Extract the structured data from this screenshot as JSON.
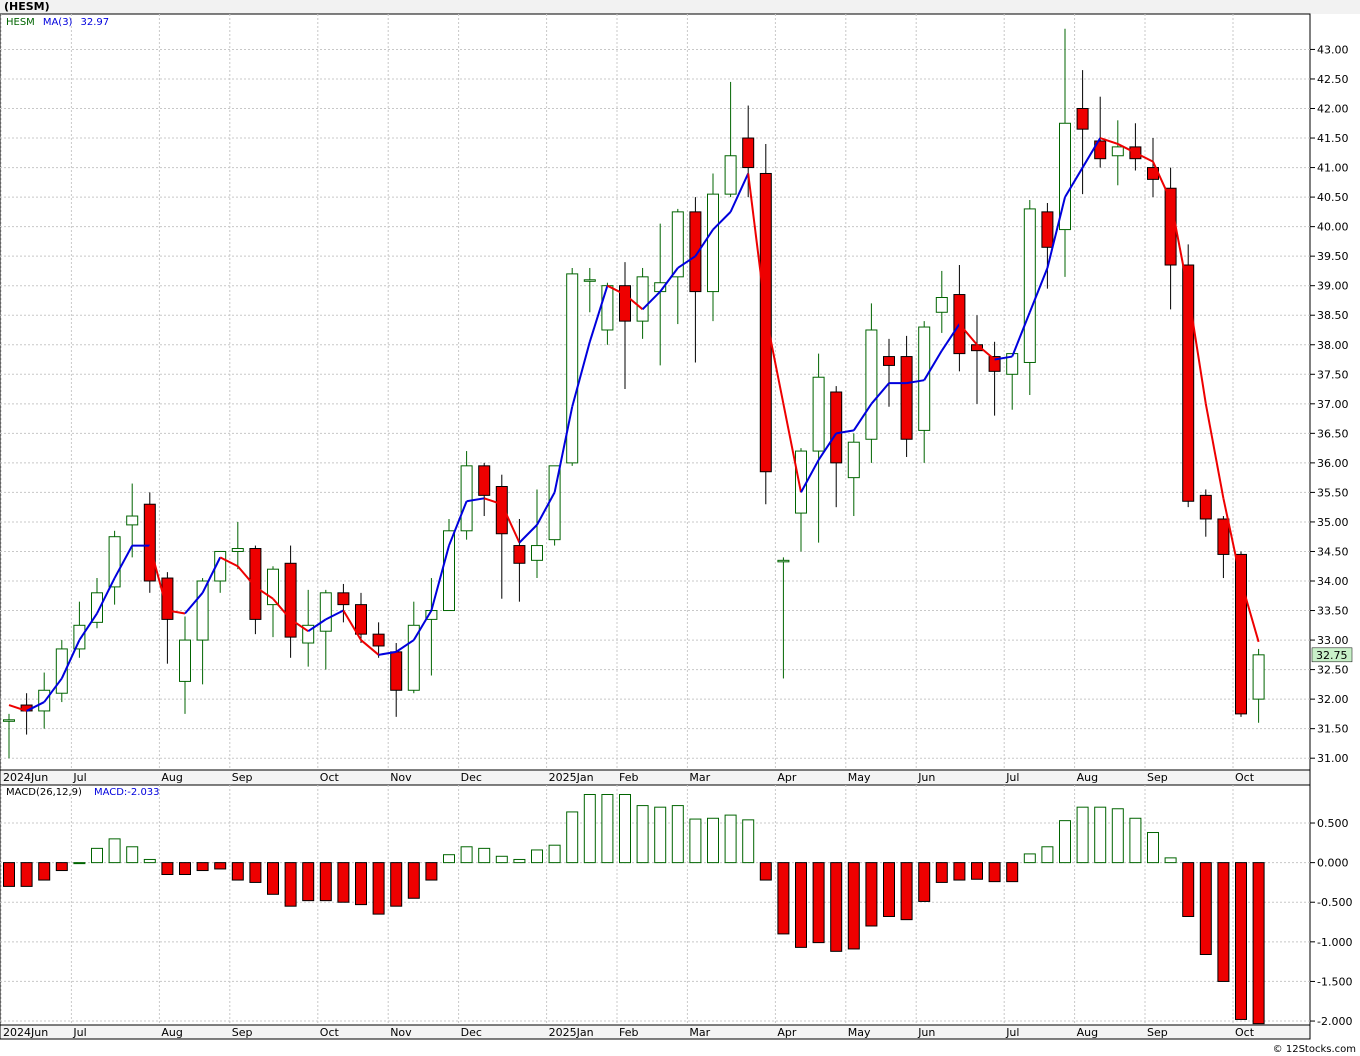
{
  "title": "(HESM)",
  "credit": "© 12Stocks.com",
  "colors": {
    "up": "#006400",
    "down": "#ee0000",
    "ma_up": "#0000dd",
    "ma_down": "#ee0000",
    "grid": "#c8c8c8",
    "price_label_bg": "#c8f0c8"
  },
  "chart_data": [
    {
      "type": "candlestick",
      "legend": {
        "symbol": "HESM",
        "ma_label": "MA(3)",
        "ma_value": "32.97"
      },
      "last_price_label": "32.75",
      "ylim": [
        30.8,
        43.6
      ],
      "yticks": [
        "31.00",
        "31.50",
        "32.00",
        "32.50",
        "33.00",
        "33.50",
        "34.00",
        "34.50",
        "35.00",
        "35.50",
        "36.00",
        "36.50",
        "37.00",
        "37.50",
        "38.00",
        "38.50",
        "39.00",
        "39.50",
        "40.00",
        "40.50",
        "41.00",
        "41.50",
        "42.00",
        "42.50",
        "43.00"
      ],
      "xticks": [
        {
          "label": "2024Jun",
          "i": 0
        },
        {
          "label": "Jul",
          "i": 4
        },
        {
          "label": "Aug",
          "i": 9
        },
        {
          "label": "Sep",
          "i": 13
        },
        {
          "label": "Oct",
          "i": 18
        },
        {
          "label": "Nov",
          "i": 22
        },
        {
          "label": "Dec",
          "i": 26
        },
        {
          "label": "2025Jan",
          "i": 31
        },
        {
          "label": "Feb",
          "i": 35
        },
        {
          "label": "Mar",
          "i": 39
        },
        {
          "label": "Apr",
          "i": 44
        },
        {
          "label": "May",
          "i": 48
        },
        {
          "label": "Jun",
          "i": 52
        },
        {
          "label": "Jul",
          "i": 57
        },
        {
          "label": "Aug",
          "i": 61
        },
        {
          "label": "Sep",
          "i": 65
        },
        {
          "label": "Oct",
          "i": 70
        }
      ],
      "candles": [
        [
          31.65,
          31.75,
          31.0,
          31.65
        ],
        [
          31.9,
          32.1,
          31.4,
          31.8
        ],
        [
          31.8,
          32.45,
          31.5,
          32.15
        ],
        [
          32.1,
          33.0,
          31.95,
          32.85
        ],
        [
          32.85,
          33.65,
          32.7,
          33.25
        ],
        [
          33.3,
          34.05,
          33.2,
          33.8
        ],
        [
          33.9,
          34.85,
          33.6,
          34.75
        ],
        [
          34.95,
          35.65,
          34.4,
          35.1
        ],
        [
          35.3,
          35.5,
          33.8,
          34.0
        ],
        [
          34.05,
          34.15,
          32.6,
          33.35
        ],
        [
          32.3,
          33.4,
          31.75,
          33.0
        ],
        [
          33.0,
          34.05,
          32.25,
          34.0
        ],
        [
          34.0,
          34.5,
          33.8,
          34.5
        ],
        [
          34.5,
          35.0,
          34.2,
          34.55
        ],
        [
          34.55,
          34.6,
          33.1,
          33.35
        ],
        [
          33.6,
          34.25,
          33.05,
          34.2
        ],
        [
          34.3,
          34.6,
          32.7,
          33.05
        ],
        [
          32.95,
          33.85,
          32.55,
          33.25
        ],
        [
          33.15,
          33.85,
          32.5,
          33.8
        ],
        [
          33.8,
          33.95,
          33.3,
          33.6
        ],
        [
          33.6,
          33.8,
          32.95,
          33.1
        ],
        [
          33.1,
          33.3,
          32.7,
          32.9
        ],
        [
          32.8,
          32.95,
          31.7,
          32.15
        ],
        [
          32.15,
          33.65,
          32.1,
          33.25
        ],
        [
          33.35,
          34.05,
          32.4,
          33.5
        ],
        [
          33.5,
          35.05,
          33.5,
          34.85
        ],
        [
          34.85,
          36.2,
          34.7,
          35.95
        ],
        [
          35.95,
          36.0,
          35.1,
          35.45
        ],
        [
          35.6,
          35.8,
          33.7,
          34.8
        ],
        [
          34.6,
          35.05,
          33.65,
          34.3
        ],
        [
          34.35,
          35.55,
          34.05,
          34.6
        ],
        [
          34.7,
          35.9,
          34.6,
          35.95
        ],
        [
          36.0,
          39.3,
          35.95,
          39.2
        ],
        [
          39.1,
          39.3,
          38.55,
          39.1
        ],
        [
          38.25,
          39.05,
          38.0,
          39.0
        ],
        [
          39.0,
          39.4,
          37.25,
          38.4
        ],
        [
          38.4,
          39.3,
          38.1,
          39.15
        ],
        [
          38.9,
          40.05,
          37.65,
          39.05
        ],
        [
          39.15,
          40.3,
          38.35,
          40.25
        ],
        [
          40.25,
          40.5,
          37.7,
          38.9
        ],
        [
          38.9,
          40.9,
          38.4,
          40.55
        ],
        [
          40.55,
          42.45,
          40.5,
          41.2
        ],
        [
          41.5,
          42.05,
          40.5,
          41.0
        ],
        [
          40.9,
          41.4,
          35.3,
          35.85
        ],
        [
          34.35,
          34.4,
          32.35,
          34.35
        ],
        [
          35.15,
          36.25,
          34.5,
          36.2
        ],
        [
          36.2,
          37.85,
          34.65,
          37.45
        ],
        [
          37.2,
          37.3,
          35.25,
          36.0
        ],
        [
          35.75,
          36.5,
          35.1,
          36.35
        ],
        [
          36.4,
          38.7,
          36.0,
          38.25
        ],
        [
          37.8,
          38.1,
          36.95,
          37.65
        ],
        [
          37.8,
          38.15,
          36.1,
          36.4
        ],
        [
          36.55,
          38.4,
          36.0,
          38.3
        ],
        [
          38.55,
          39.25,
          38.2,
          38.8
        ],
        [
          38.85,
          39.35,
          37.55,
          37.85
        ],
        [
          38.0,
          38.5,
          37.0,
          37.9
        ],
        [
          37.8,
          38.05,
          36.8,
          37.55
        ],
        [
          37.5,
          37.85,
          36.9,
          37.85
        ],
        [
          37.7,
          40.45,
          37.15,
          40.3
        ],
        [
          40.25,
          40.4,
          38.95,
          39.65
        ],
        [
          39.95,
          43.35,
          39.15,
          41.75
        ],
        [
          42.0,
          42.65,
          40.55,
          41.65
        ],
        [
          41.45,
          42.2,
          41.0,
          41.15
        ],
        [
          41.2,
          41.8,
          40.7,
          41.35
        ],
        [
          41.35,
          41.75,
          40.95,
          41.15
        ],
        [
          41.0,
          41.5,
          40.5,
          40.8
        ],
        [
          40.65,
          41.0,
          38.6,
          39.35
        ],
        [
          39.35,
          39.7,
          35.25,
          35.35
        ],
        [
          35.45,
          35.55,
          34.75,
          35.05
        ],
        [
          35.05,
          35.1,
          34.05,
          34.45
        ],
        [
          34.45,
          34.5,
          31.7,
          31.75
        ],
        [
          32.0,
          32.85,
          31.6,
          32.75
        ]
      ],
      "ma3": [
        31.9,
        31.8,
        31.95,
        32.35,
        33.0,
        33.45,
        34.05,
        34.6,
        34.6,
        33.5,
        33.45,
        33.8,
        34.4,
        34.25,
        33.9,
        33.7,
        33.35,
        33.15,
        33.35,
        33.5,
        33.0,
        32.75,
        32.8,
        33.0,
        33.5,
        34.6,
        35.35,
        35.4,
        35.3,
        34.65,
        34.95,
        35.5,
        36.95,
        38.05,
        39.0,
        38.85,
        38.6,
        38.9,
        39.3,
        39.5,
        39.95,
        40.25,
        40.9,
        38.5,
        37.0,
        35.5,
        36.05,
        36.5,
        36.55,
        37.0,
        37.35,
        37.35,
        37.4,
        37.9,
        38.35,
        38.0,
        37.75,
        37.8,
        38.55,
        39.3,
        40.5,
        41.0,
        41.5,
        41.4,
        41.25,
        41.1,
        40.45,
        38.9,
        37.0,
        35.4,
        34.0,
        32.97
      ]
    },
    {
      "type": "bar",
      "legend": {
        "label": "MACD(26,12,9)",
        "value_label": "MACD:-2.033"
      },
      "ylim": [
        -2.05,
        0.98
      ],
      "yticks": [
        "0.500",
        "0.000",
        "-0.500",
        "-1.000",
        "-1.500",
        "-2.000"
      ],
      "values": [
        -0.3,
        -0.3,
        -0.22,
        -0.1,
        0.0,
        0.18,
        0.3,
        0.2,
        0.04,
        -0.15,
        -0.15,
        -0.1,
        -0.08,
        -0.22,
        -0.25,
        -0.4,
        -0.55,
        -0.48,
        -0.48,
        -0.5,
        -0.53,
        -0.65,
        -0.55,
        -0.45,
        -0.22,
        0.1,
        0.2,
        0.18,
        0.08,
        0.04,
        0.16,
        0.22,
        0.64,
        0.86,
        0.86,
        0.86,
        0.72,
        0.7,
        0.72,
        0.55,
        0.56,
        0.6,
        0.54,
        -0.22,
        -0.9,
        -1.07,
        -1.01,
        -1.12,
        -1.09,
        -0.8,
        -0.68,
        -0.72,
        -0.49,
        -0.25,
        -0.22,
        -0.21,
        -0.24,
        -0.24,
        0.11,
        0.2,
        0.53,
        0.7,
        0.7,
        0.68,
        0.56,
        0.38,
        0.06,
        -0.68,
        -1.16,
        -1.5,
        -1.98,
        -2.033
      ]
    }
  ]
}
